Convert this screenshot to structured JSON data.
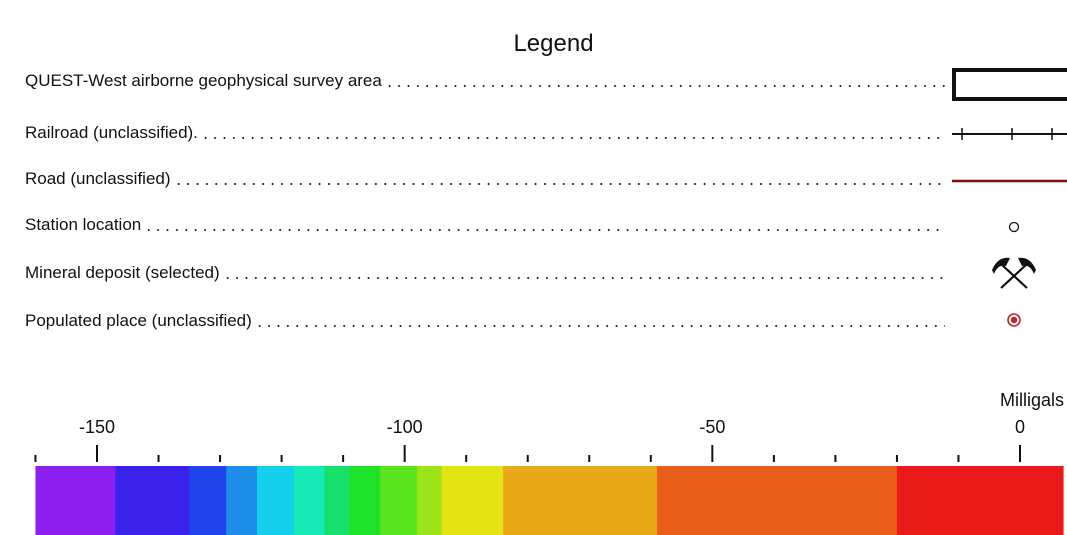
{
  "legend": {
    "title": "Legend",
    "items": [
      {
        "label": "QUEST-West airborne geophysical survey area",
        "symbol": "survey-area-rectangle"
      },
      {
        "label": "Railroad (unclassified).",
        "symbol": "railroad-line"
      },
      {
        "label": "Road (unclassified)",
        "symbol": "road-line"
      },
      {
        "label": "Station location",
        "symbol": "open-circle"
      },
      {
        "label": "Mineral deposit (selected)",
        "symbol": "crossed-picks-icon"
      },
      {
        "label": "Populated place (unclassified)",
        "symbol": "red-dot-circle"
      }
    ],
    "colors": {
      "road": "#7a1010",
      "populated_place": "#c0262b",
      "outline": "#111111"
    }
  },
  "scale": {
    "unit_label": "Milligals",
    "major_labels": [
      "-150",
      "-100",
      "-50",
      "0"
    ],
    "major_values": [
      -150,
      -100,
      -50,
      0
    ],
    "minor_values": [
      -160,
      -140,
      -130,
      -120,
      -110,
      -90,
      -80,
      -70,
      -60,
      -40,
      -30,
      -20,
      -10
    ],
    "bands": [
      {
        "from": -160,
        "to": -147,
        "color": "#8a1ff0"
      },
      {
        "from": -147,
        "to": -135,
        "color": "#3a22ea"
      },
      {
        "from": -135,
        "to": -129,
        "color": "#1f44ec"
      },
      {
        "from": -129,
        "to": -124,
        "color": "#1f8ee8"
      },
      {
        "from": -124,
        "to": -118,
        "color": "#14d0ea"
      },
      {
        "from": -118,
        "to": -113,
        "color": "#16eab6"
      },
      {
        "from": -113,
        "to": -109,
        "color": "#16e06a"
      },
      {
        "from": -109,
        "to": -104,
        "color": "#1ee22a"
      },
      {
        "from": -104,
        "to": -98,
        "color": "#5ae41e"
      },
      {
        "from": -98,
        "to": -94,
        "color": "#9ee41a"
      },
      {
        "from": -94,
        "to": -84,
        "color": "#e4e414"
      },
      {
        "from": -84,
        "to": -59,
        "color": "#e8aa18"
      },
      {
        "from": -59,
        "to": -20,
        "color": "#ea5e1a"
      },
      {
        "from": -20,
        "to": 7,
        "color": "#ea1a1a"
      }
    ]
  }
}
